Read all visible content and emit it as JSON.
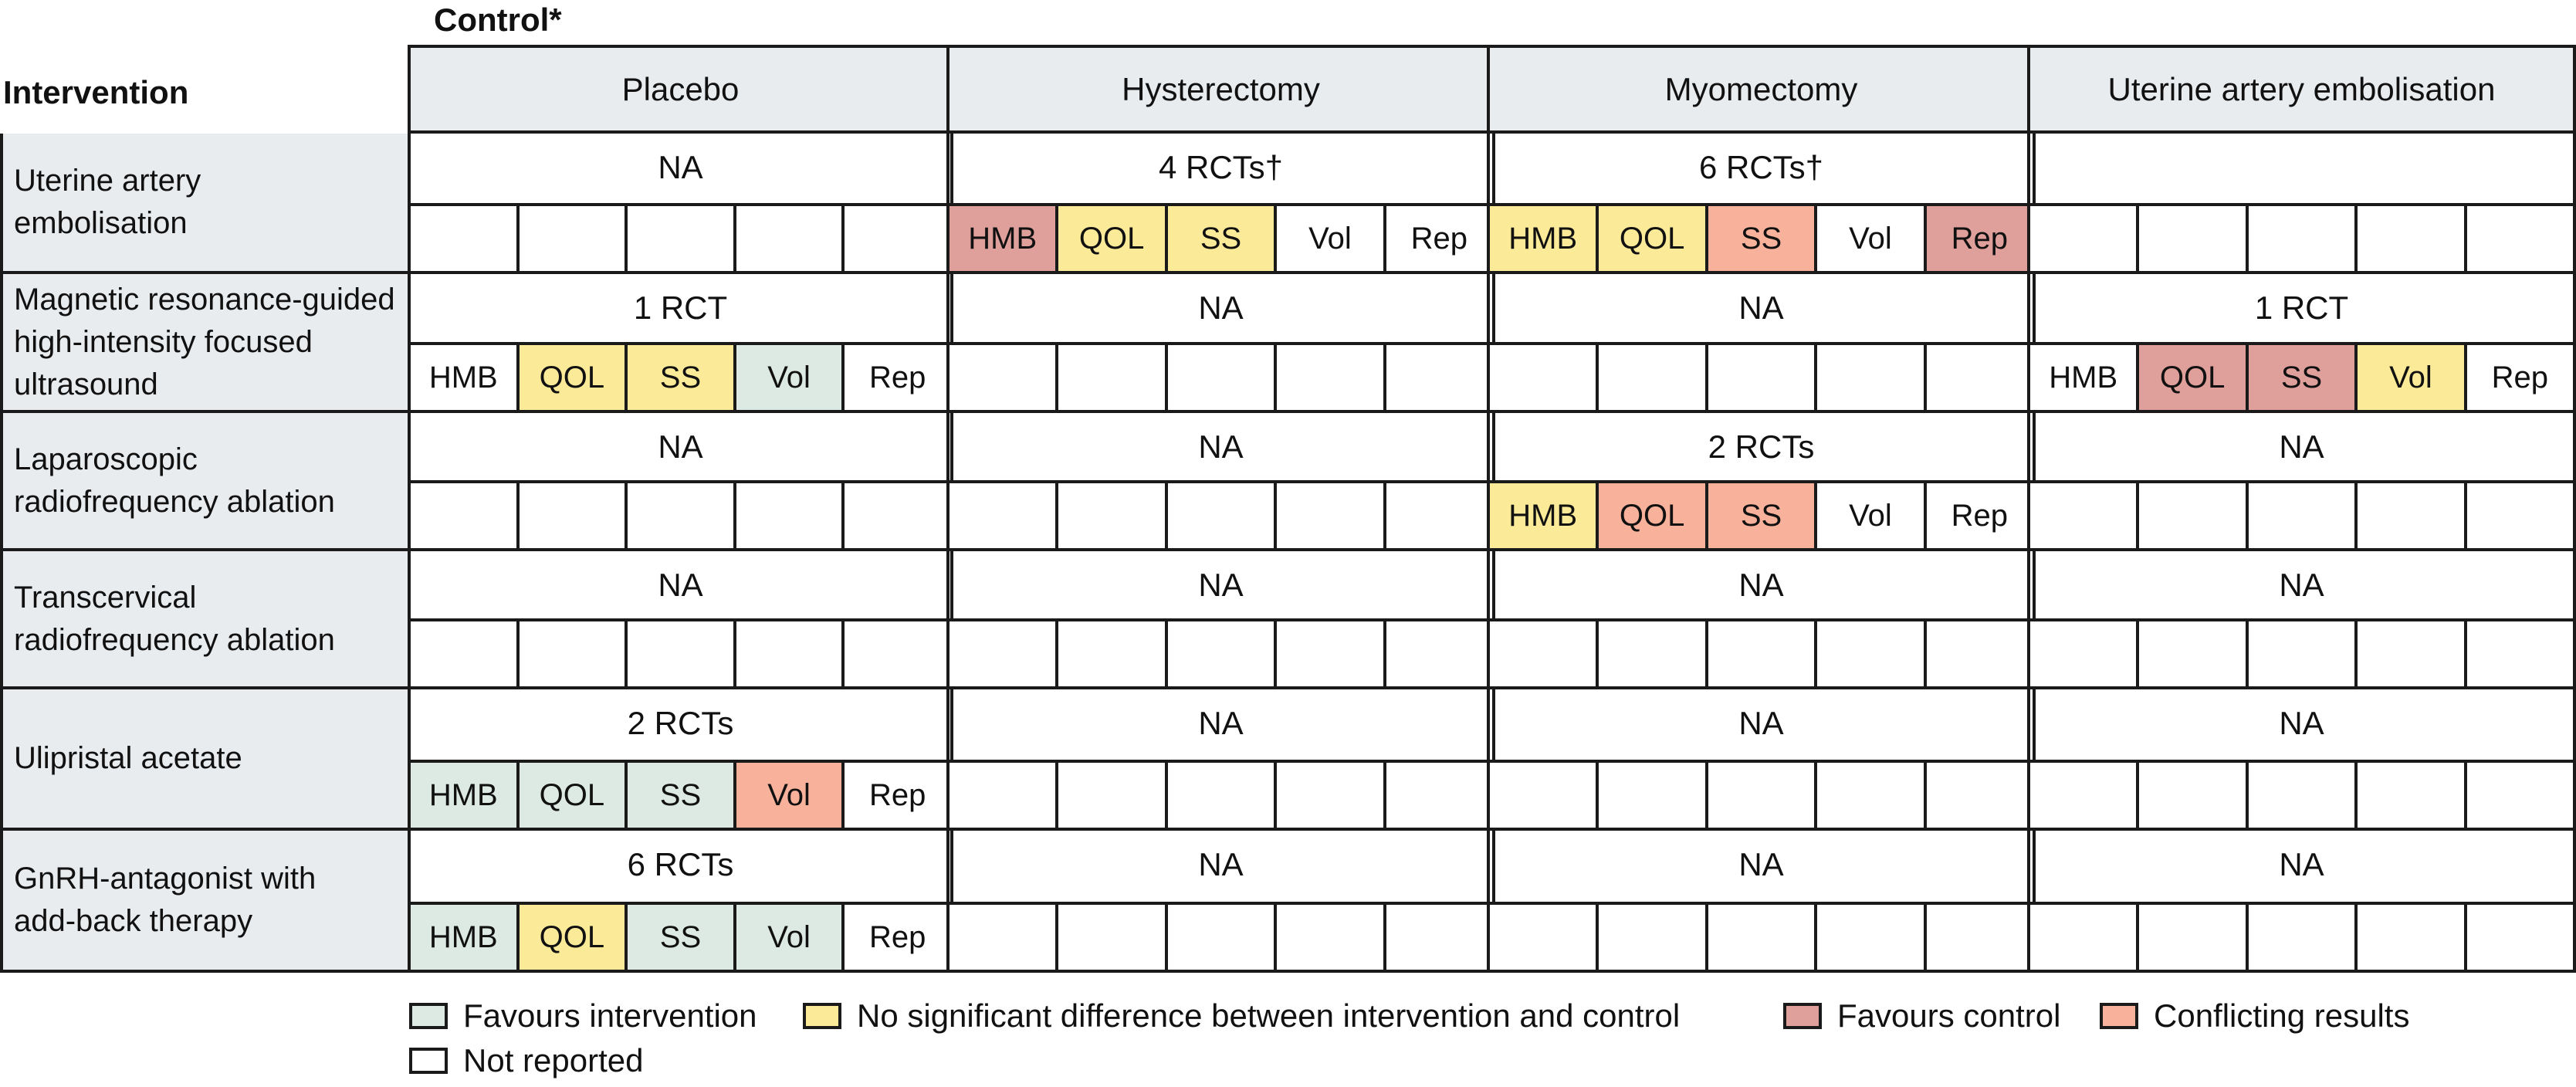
{
  "control_label": "Control*",
  "intervention_label": "Intervention",
  "columns": [
    "Placebo",
    "Hysterectomy",
    "Myomectomy",
    "Uterine artery embolisation"
  ],
  "outcome_labels": [
    "HMB",
    "QOL",
    "SS",
    "Vol",
    "Rep"
  ],
  "colors": {
    "favours_intervention": "#dde9e3",
    "no_difference": "#fbea98",
    "favours_control": "#df9f9b",
    "conflicting": "#f8b29b",
    "not_reported": "#ffffff",
    "header_bg": "#e9ecef",
    "border": "#1a1a1a"
  },
  "rows": [
    {
      "label": "Uterine artery\nembolisation",
      "cells": [
        {
          "studies": "NA",
          "outcomes": null
        },
        {
          "studies": "4 RCTs†",
          "outcomes": [
            "favours_control",
            "no_difference",
            "no_difference",
            "not_reported",
            "not_reported"
          ]
        },
        {
          "studies": "6 RCTs†",
          "outcomes": [
            "no_difference",
            "no_difference",
            "conflicting",
            "not_reported",
            "favours_control"
          ]
        },
        {
          "studies": "",
          "outcomes": null
        }
      ]
    },
    {
      "label": "Magnetic resonance-guided\nhigh-intensity focused\nultrasound",
      "cells": [
        {
          "studies": "1 RCT",
          "outcomes": [
            "not_reported",
            "no_difference",
            "no_difference",
            "favours_intervention",
            "not_reported"
          ]
        },
        {
          "studies": "NA",
          "outcomes": null
        },
        {
          "studies": "NA",
          "outcomes": null
        },
        {
          "studies": "1 RCT",
          "outcomes": [
            "not_reported",
            "favours_control",
            "favours_control",
            "no_difference",
            "not_reported"
          ]
        }
      ]
    },
    {
      "label": "Laparoscopic\nradiofrequency ablation",
      "cells": [
        {
          "studies": "NA",
          "outcomes": null
        },
        {
          "studies": "NA",
          "outcomes": null
        },
        {
          "studies": "2 RCTs",
          "outcomes": [
            "no_difference",
            "conflicting",
            "conflicting",
            "not_reported",
            "not_reported"
          ]
        },
        {
          "studies": "NA",
          "outcomes": null
        }
      ]
    },
    {
      "label": "Transcervical\nradiofrequency ablation",
      "cells": [
        {
          "studies": "NA",
          "outcomes": null
        },
        {
          "studies": "NA",
          "outcomes": null
        },
        {
          "studies": "NA",
          "outcomes": null
        },
        {
          "studies": "NA",
          "outcomes": null
        }
      ]
    },
    {
      "label": "Ulipristal acetate",
      "cells": [
        {
          "studies": "2 RCTs",
          "outcomes": [
            "favours_intervention",
            "favours_intervention",
            "favours_intervention",
            "conflicting",
            "not_reported"
          ]
        },
        {
          "studies": "NA",
          "outcomes": null
        },
        {
          "studies": "NA",
          "outcomes": null
        },
        {
          "studies": "NA",
          "outcomes": null
        }
      ]
    },
    {
      "label": "GnRH-antagonist with\nadd-back therapy",
      "cells": [
        {
          "studies": "6 RCTs",
          "outcomes": [
            "favours_intervention",
            "no_difference",
            "favours_intervention",
            "favours_intervention",
            "not_reported"
          ]
        },
        {
          "studies": "NA",
          "outcomes": null
        },
        {
          "studies": "NA",
          "outcomes": null
        },
        {
          "studies": "NA",
          "outcomes": null
        }
      ]
    }
  ],
  "legend": [
    {
      "key": "favours_intervention",
      "label": "Favours intervention"
    },
    {
      "key": "no_difference",
      "label": "No significant difference between intervention and control"
    },
    {
      "key": "favours_control",
      "label": "Favours control"
    },
    {
      "key": "conflicting",
      "label": "Conflicting results"
    },
    {
      "key": "not_reported",
      "label": "Not reported"
    }
  ]
}
